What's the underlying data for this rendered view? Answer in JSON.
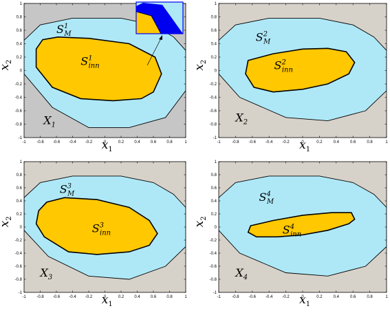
{
  "colors": {
    "outer_bg_1": "#c6c6c6",
    "outer_bg": "#d7d2c9",
    "middle": "#aee8f7",
    "inner": "#ffc800",
    "inset_blue": "#0000f0",
    "inset_border": "#0000f0"
  },
  "axes": {
    "x_ticks": [
      "-1",
      "-0.8",
      "-0.6",
      "-0.4",
      "-0.2",
      "0",
      "0.2",
      "0.4",
      "0.6",
      "0.8",
      "1"
    ],
    "y_ticks": [
      "1",
      "0.8",
      "0.6",
      "0.4",
      "0.2",
      "0",
      "-0.2",
      "-0.4",
      "-0.6",
      "-0.8",
      "-1"
    ],
    "x_label_main": "x",
    "x_label_sub": "1",
    "y_label_main": "x",
    "y_label_sub": "2"
  },
  "panels": [
    {
      "id": "1",
      "region_main": "X",
      "region_sub": "1",
      "middle_set_main": "S",
      "middle_set_sup": "1",
      "middle_set_sub": "M",
      "inner_set_main": "S",
      "inner_set_sup": "1",
      "inner_set_sub": "inn",
      "middle_poly": [
        [
          -1,
          0.45
        ],
        [
          -0.8,
          0.68
        ],
        [
          -0.4,
          0.78
        ],
        [
          0.2,
          0.78
        ],
        [
          0.6,
          0.68
        ],
        [
          0.85,
          0.5
        ],
        [
          1,
          0.3
        ],
        [
          1,
          -0.3
        ],
        [
          0.75,
          -0.7
        ],
        [
          0.3,
          -0.85
        ],
        [
          -0.2,
          -0.85
        ],
        [
          -0.65,
          -0.55
        ],
        [
          -1,
          -0.05
        ]
      ],
      "inner_poly": [
        [
          -0.85,
          0.32
        ],
        [
          -0.77,
          0.46
        ],
        [
          -0.58,
          0.5
        ],
        [
          -0.2,
          0.48
        ],
        [
          0.3,
          0.4
        ],
        [
          0.62,
          0.2
        ],
        [
          0.7,
          -0.05
        ],
        [
          0.6,
          -0.32
        ],
        [
          0.45,
          -0.42
        ],
        [
          0.1,
          -0.45
        ],
        [
          -0.3,
          -0.42
        ],
        [
          -0.65,
          -0.25
        ],
        [
          -0.85,
          0.05
        ]
      ]
    },
    {
      "id": "2",
      "region_main": "X",
      "region_sub": "2",
      "middle_set_main": "S",
      "middle_set_sup": "2",
      "middle_set_sub": "M",
      "inner_set_main": "S",
      "inner_set_sup": "2",
      "inner_set_sub": "inn",
      "middle_poly": [
        [
          -1,
          0.45
        ],
        [
          -0.8,
          0.68
        ],
        [
          -0.4,
          0.78
        ],
        [
          0.2,
          0.78
        ],
        [
          0.6,
          0.68
        ],
        [
          0.85,
          0.5
        ],
        [
          1,
          0.3
        ],
        [
          1,
          -0.3
        ],
        [
          0.75,
          -0.6
        ],
        [
          0.3,
          -0.75
        ],
        [
          -0.2,
          -0.7
        ],
        [
          -0.75,
          -0.4
        ],
        [
          -1,
          -0.05
        ]
      ],
      "inner_poly": [
        [
          -0.65,
          0.15
        ],
        [
          -0.35,
          0.25
        ],
        [
          0,
          0.32
        ],
        [
          0.3,
          0.33
        ],
        [
          0.52,
          0.28
        ],
        [
          0.62,
          0.12
        ],
        [
          0.55,
          -0.05
        ],
        [
          0.3,
          -0.2
        ],
        [
          0,
          -0.28
        ],
        [
          -0.35,
          -0.32
        ],
        [
          -0.58,
          -0.25
        ],
        [
          -0.68,
          -0.05
        ]
      ]
    },
    {
      "id": "3",
      "region_main": "X",
      "region_sub": "3",
      "middle_set_main": "S",
      "middle_set_sup": "3",
      "middle_set_sub": "M",
      "inner_set_main": "S",
      "inner_set_sup": "3",
      "inner_set_sub": "inn",
      "middle_poly": [
        [
          -1,
          0.45
        ],
        [
          -0.8,
          0.68
        ],
        [
          -0.4,
          0.78
        ],
        [
          0.2,
          0.78
        ],
        [
          0.6,
          0.68
        ],
        [
          0.85,
          0.5
        ],
        [
          1,
          0.3
        ],
        [
          1,
          -0.3
        ],
        [
          0.75,
          -0.6
        ],
        [
          0.3,
          -0.8
        ],
        [
          -0.2,
          -0.75
        ],
        [
          -0.7,
          -0.45
        ],
        [
          -1,
          -0.05
        ]
      ],
      "inner_poly": [
        [
          -0.82,
          0.25
        ],
        [
          -0.72,
          0.38
        ],
        [
          -0.5,
          0.45
        ],
        [
          -0.1,
          0.42
        ],
        [
          0.3,
          0.3
        ],
        [
          0.55,
          0.1
        ],
        [
          0.65,
          -0.1
        ],
        [
          0.55,
          -0.28
        ],
        [
          0.3,
          -0.38
        ],
        [
          -0.1,
          -0.42
        ],
        [
          -0.45,
          -0.38
        ],
        [
          -0.75,
          -0.15
        ],
        [
          -0.85,
          0.05
        ]
      ]
    },
    {
      "id": "4",
      "region_main": "X",
      "region_sub": "4",
      "middle_set_main": "S",
      "middle_set_sup": "4",
      "middle_set_sub": "M",
      "inner_set_main": "S",
      "inner_set_sup": "4",
      "inner_set_sub": "inn",
      "middle_poly": [
        [
          -1,
          0.45
        ],
        [
          -0.8,
          0.68
        ],
        [
          -0.4,
          0.78
        ],
        [
          0.2,
          0.78
        ],
        [
          0.6,
          0.68
        ],
        [
          0.85,
          0.5
        ],
        [
          1,
          0.3
        ],
        [
          1,
          -0.3
        ],
        [
          0.75,
          -0.6
        ],
        [
          0.3,
          -0.75
        ],
        [
          -0.2,
          -0.7
        ],
        [
          -0.75,
          -0.4
        ],
        [
          -1,
          -0.05
        ]
      ],
      "inner_poly": [
        [
          -0.62,
          0.02
        ],
        [
          -0.35,
          0.1
        ],
        [
          0,
          0.18
        ],
        [
          0.35,
          0.22
        ],
        [
          0.58,
          0.22
        ],
        [
          0.62,
          0.12
        ],
        [
          0.55,
          0.05
        ],
        [
          0.3,
          -0.05
        ],
        [
          0,
          -0.12
        ],
        [
          -0.3,
          -0.15
        ],
        [
          -0.55,
          -0.15
        ],
        [
          -0.65,
          -0.08
        ]
      ]
    }
  ]
}
